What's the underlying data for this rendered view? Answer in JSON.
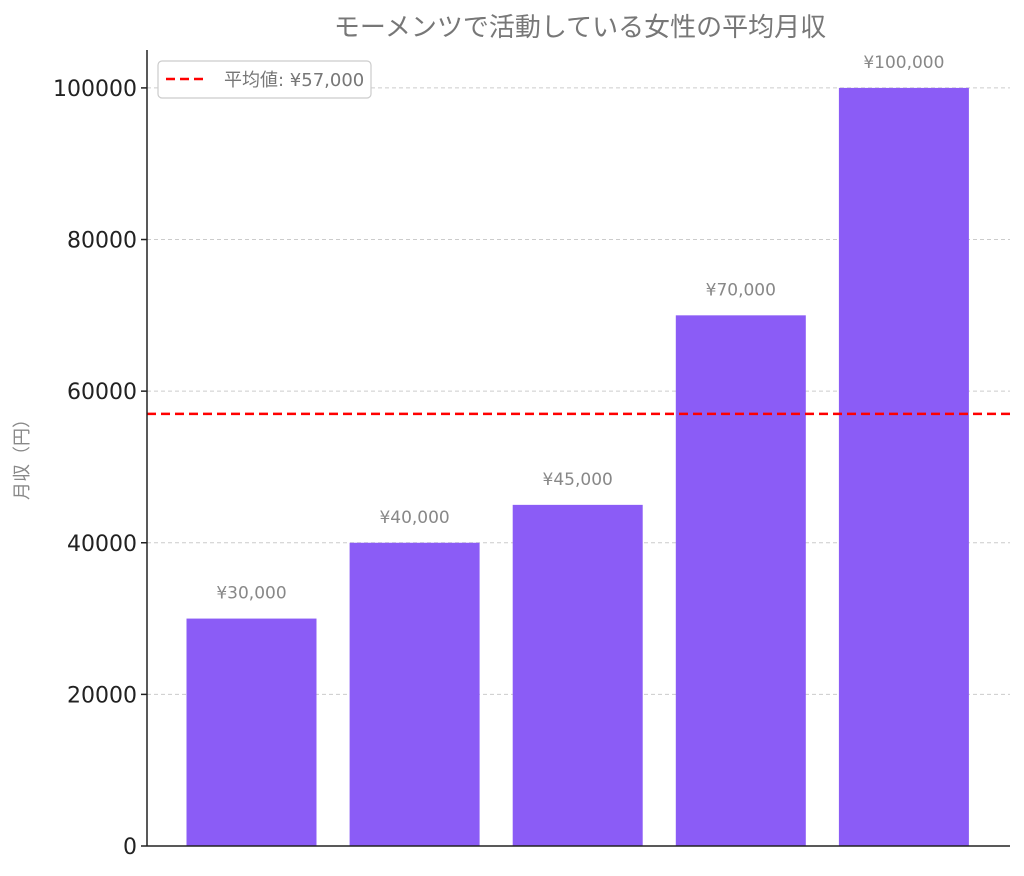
{
  "chart_data": {
    "type": "bar",
    "title": "モーメンツで活動している女性の平均月収",
    "xlabel": "",
    "ylabel": "月収（円）",
    "ylim": [
      0,
      105000
    ],
    "yticks": [
      0,
      20000,
      40000,
      60000,
      80000,
      100000
    ],
    "grid": "y-dashed",
    "values": [
      30000,
      40000,
      45000,
      70000,
      100000
    ],
    "data_labels": [
      "¥30,000",
      "¥40,000",
      "¥45,000",
      "¥70,000",
      "¥100,000"
    ],
    "bar_color": "#8b5cf6",
    "reference_line": {
      "value": 57000,
      "label": "平均値: ¥57,000",
      "color": "#ff0000",
      "style": "dashed"
    },
    "legend_position": "top-left"
  }
}
